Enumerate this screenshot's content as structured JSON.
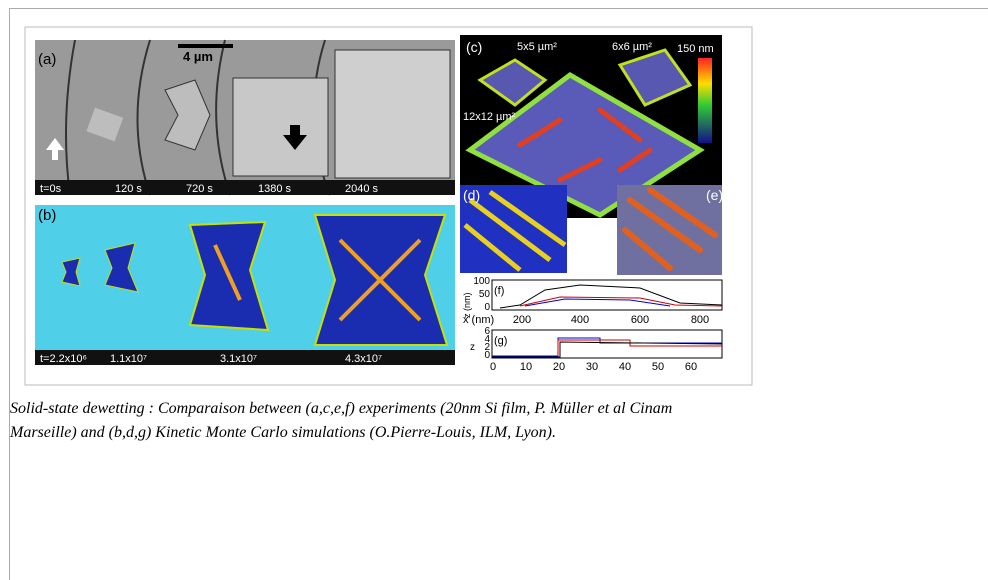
{
  "figure": {
    "panel_a": {
      "label": "(a)",
      "scale": "4 µm",
      "times": [
        "t=0s",
        "120 s",
        "720 s",
        "1380 s",
        "2040 s"
      ]
    },
    "panel_b": {
      "label": "(b)",
      "times": [
        "t=2.2x10⁶",
        "1.1x10⁷",
        "3.1x10⁷",
        "4.3x10⁷"
      ]
    },
    "panel_c": {
      "label": "(c)",
      "small_left": "5x5 µm²",
      "small_right": "6x6 µm²",
      "large": "12x12 µm²",
      "colorbar": "150 nm"
    },
    "panel_d": {
      "label": "(d)"
    },
    "panel_e": {
      "label": "(e)"
    },
    "panel_f": {
      "label": "(f)",
      "y_label": "z (nm)",
      "y_ticks": [
        "100",
        "50",
        "0"
      ],
      "x_label": "x (nm)",
      "x_ticks": [
        "200",
        "400",
        "600",
        "800"
      ]
    },
    "panel_g": {
      "label": "(g)",
      "y_label": "z",
      "y_ticks": [
        "6",
        "4",
        "2",
        "0"
      ],
      "x_ticks": [
        "0",
        "10",
        "20",
        "30",
        "40",
        "50",
        "60"
      ]
    }
  },
  "caption_lines": [
    "Solid-state dewetting : Comparaison between (a,c,e,f)  experiments (20nm Si film, P. Müller et al Cinam",
    "Marseille)  and (b,d,g)  Kinetic Monte Carlo simulations (O.Pierre-Louis, ILM, Lyon)."
  ]
}
